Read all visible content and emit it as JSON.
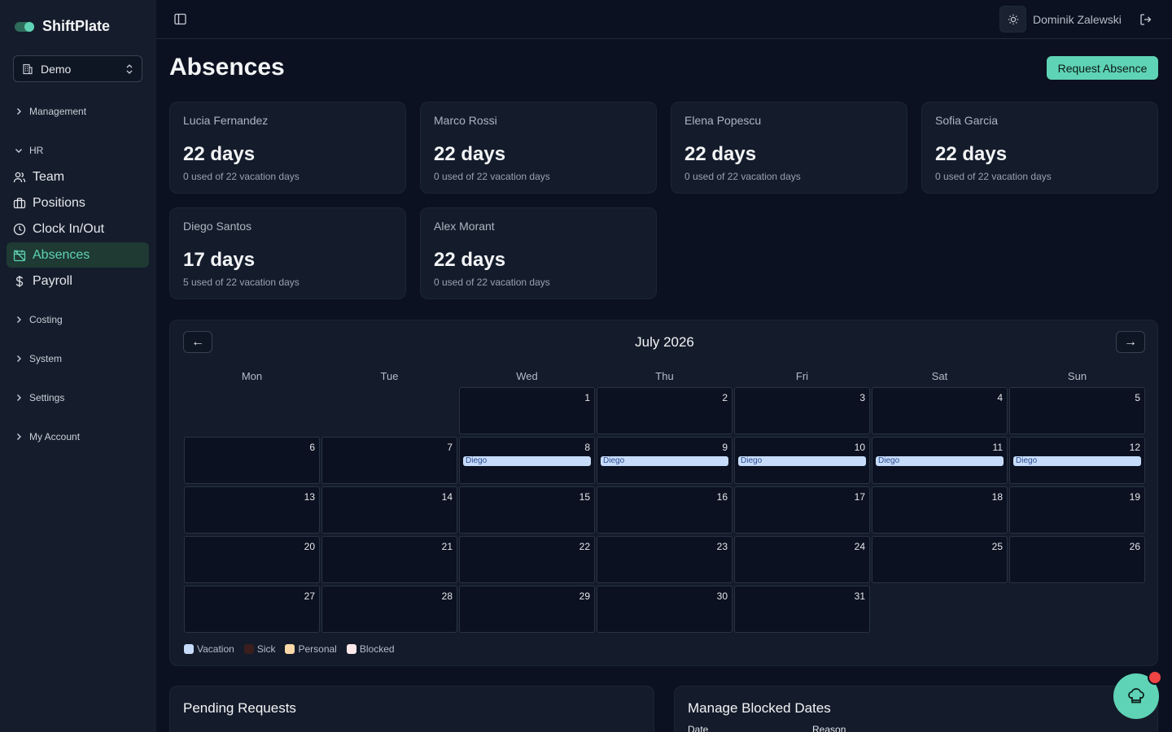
{
  "app": {
    "name": "ShiftPlate"
  },
  "org_select": {
    "value": "Demo"
  },
  "nav": {
    "groups": {
      "management": "Management",
      "hr": "HR",
      "costing": "Costing",
      "system": "System",
      "settings": "Settings",
      "my_account": "My Account"
    },
    "items": {
      "team": "Team",
      "positions": "Positions",
      "clock": "Clock In/Out",
      "absences": "Absences",
      "payroll": "Payroll"
    },
    "active": "Absences"
  },
  "user": {
    "name": "Dominik Zalewski"
  },
  "page": {
    "title": "Absences",
    "request_button": "Request Absence"
  },
  "balances": [
    {
      "name": "Lucia Fernandez",
      "days": "22 days",
      "sub": "0 used of 22 vacation days"
    },
    {
      "name": "Marco Rossi",
      "days": "22 days",
      "sub": "0 used of 22 vacation days"
    },
    {
      "name": "Elena Popescu",
      "days": "22 days",
      "sub": "0 used of 22 vacation days"
    },
    {
      "name": "Sofia Garcia",
      "days": "22 days",
      "sub": "0 used of 22 vacation days"
    },
    {
      "name": "Diego Santos",
      "days": "17 days",
      "sub": "5 used of 22 vacation days"
    },
    {
      "name": "Alex Morant",
      "days": "22 days",
      "sub": "0 used of 22 vacation days"
    }
  ],
  "calendar": {
    "month": "July 2026",
    "prev": "←",
    "next": "→",
    "weekdays": [
      "Mon",
      "Tue",
      "Wed",
      "Thu",
      "Fri",
      "Sat",
      "Sun"
    ],
    "first_weekday_offset": 2,
    "days_in_month": 31,
    "events": [
      {
        "day": 8,
        "label": "Diego",
        "type": "vacation"
      },
      {
        "day": 9,
        "label": "Diego",
        "type": "vacation"
      },
      {
        "day": 10,
        "label": "Diego",
        "type": "vacation"
      },
      {
        "day": 11,
        "label": "Diego",
        "type": "vacation"
      },
      {
        "day": 12,
        "label": "Diego",
        "type": "vacation"
      }
    ],
    "legend": [
      {
        "label": "Vacation",
        "color": "#c7dcfb"
      },
      {
        "label": "Sick",
        "color": "#3b1d1d"
      },
      {
        "label": "Personal",
        "color": "#fcd9a8"
      },
      {
        "label": "Blocked",
        "color": "#fde8ea"
      }
    ]
  },
  "pending": {
    "title": "Pending Requests"
  },
  "blocked": {
    "title": "Manage Blocked Dates",
    "col_date": "Date",
    "col_reason": "Reason"
  }
}
